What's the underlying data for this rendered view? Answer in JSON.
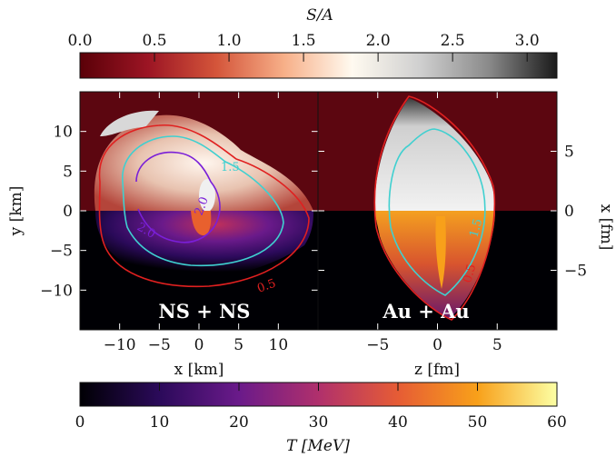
{
  "chart_data": [
    {
      "type": "heatmap",
      "panel": "NS + NS",
      "panel_label": "NS + NS",
      "xlabel": "x [km]",
      "ylabel": "y [km]",
      "xlim": [
        -15,
        15
      ],
      "ylim": [
        -15,
        15
      ],
      "xticks": [
        -10,
        -5,
        0,
        5,
        10
      ],
      "yticks": [
        -10,
        -5,
        0,
        5,
        10
      ],
      "upper_half_quantity": "S/A",
      "lower_half_quantity": "T [MeV]",
      "contours": [
        {
          "level": "1.5",
          "color": "#3fd0d0"
        },
        {
          "level": "2.0",
          "color": "#7a1fd8"
        },
        {
          "level": "0.5",
          "color": "#e02020"
        }
      ]
    },
    {
      "type": "heatmap",
      "panel": "Au + Au",
      "panel_label": "Au + Au",
      "xlabel": "z [fm]",
      "ylabel": "x [fm]",
      "xlim": [
        -10,
        10
      ],
      "ylim": [
        -10,
        10
      ],
      "xticks": [
        -5,
        0,
        5
      ],
      "yticks": [
        -5,
        0,
        5
      ],
      "upper_half_quantity": "S/A",
      "lower_half_quantity": "T [MeV]",
      "contours": [
        {
          "level": "1.5",
          "color": "#3fd0d0"
        },
        {
          "level": "0.5",
          "color": "#e02020"
        }
      ]
    },
    {
      "type": "colorbar",
      "label": "S/A",
      "range": [
        0,
        3.2
      ],
      "ticks": [
        "0.0",
        "0.5",
        "1.0",
        "1.5",
        "2.0",
        "2.5",
        "3.0"
      ],
      "stops": [
        "#5a0008",
        "#9c1524",
        "#d4553a",
        "#f7b089",
        "#fffaf0",
        "#cfcfcf",
        "#8a8a8a",
        "#1a1a1a"
      ]
    },
    {
      "type": "colorbar",
      "label": "T [MeV]",
      "range": [
        0,
        60
      ],
      "ticks": [
        "0",
        "10",
        "20",
        "30",
        "40",
        "50",
        "60"
      ],
      "stops": [
        "#000004",
        "#2b0a5a",
        "#6a1a8a",
        "#b0306c",
        "#e65c35",
        "#f8a01a",
        "#fcffa4"
      ]
    }
  ]
}
